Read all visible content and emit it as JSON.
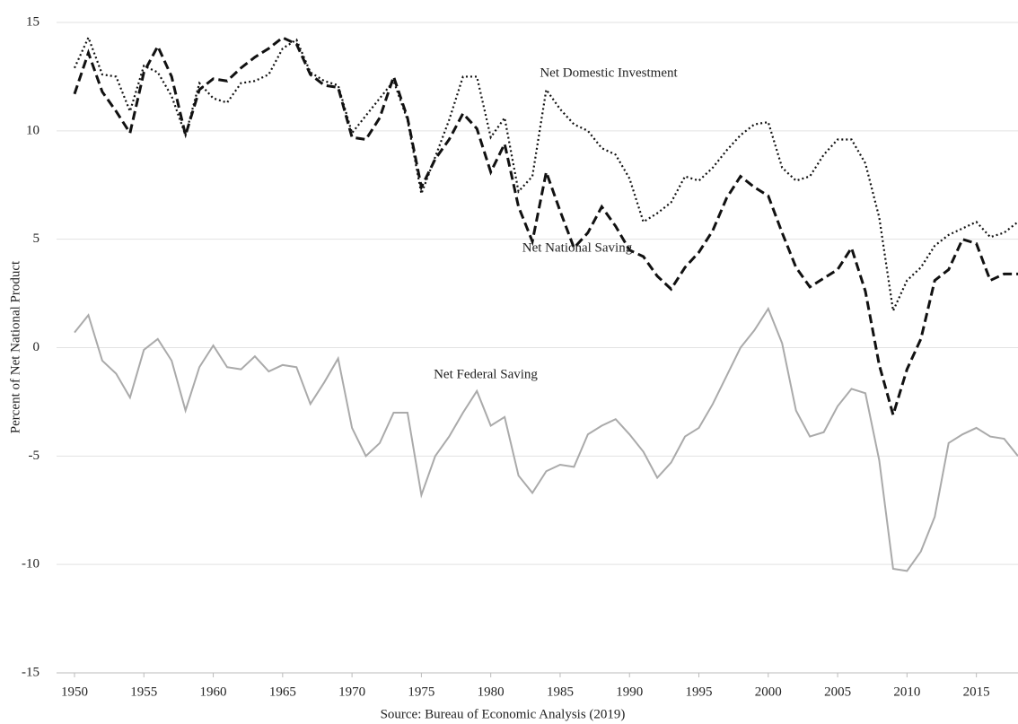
{
  "chart_data": {
    "type": "line",
    "y_label": "Percent of Net National Product",
    "x_label": "Source: Bureau of Economic Analysis (2019)",
    "annotations": [
      "Net Domestic Investment",
      "Net National Saving",
      "Net Federal Saving"
    ],
    "x": [
      1950,
      1951,
      1952,
      1953,
      1954,
      1955,
      1956,
      1957,
      1958,
      1959,
      1960,
      1961,
      1962,
      1963,
      1964,
      1965,
      1966,
      1967,
      1968,
      1969,
      1970,
      1971,
      1972,
      1973,
      1974,
      1975,
      1976,
      1977,
      1978,
      1979,
      1980,
      1981,
      1982,
      1983,
      1984,
      1985,
      1986,
      1987,
      1988,
      1989,
      1990,
      1991,
      1992,
      1993,
      1994,
      1995,
      1996,
      1997,
      1998,
      1999,
      2000,
      2001,
      2002,
      2003,
      2004,
      2005,
      2006,
      2007,
      2008,
      2009,
      2010,
      2011,
      2012,
      2013,
      2014,
      2015,
      2016,
      2017,
      2018
    ],
    "series": [
      {
        "name": "Net Domestic Investment",
        "color": "#111111",
        "style": "dotted",
        "values": [
          12.9,
          14.3,
          12.6,
          12.5,
          10.9,
          13.0,
          12.7,
          11.6,
          9.8,
          12.2,
          11.5,
          11.3,
          12.2,
          12.3,
          12.6,
          13.8,
          14.2,
          12.7,
          12.3,
          12.1,
          9.9,
          10.7,
          11.5,
          12.3,
          10.5,
          7.1,
          8.8,
          10.5,
          12.5,
          12.5,
          9.7,
          10.6,
          7.2,
          7.9,
          11.9,
          11.0,
          10.3,
          10.0,
          9.2,
          8.9,
          7.8,
          5.8,
          6.2,
          6.7,
          7.9,
          7.7,
          8.3,
          9.1,
          9.8,
          10.3,
          10.4,
          8.3,
          7.7,
          7.9,
          8.9,
          9.6,
          9.6,
          8.5,
          6.0,
          1.7,
          3.1,
          3.7,
          4.7,
          5.2,
          5.5,
          5.8,
          5.1,
          5.3,
          5.8
        ]
      },
      {
        "name": "Net National Saving",
        "color": "#111111",
        "style": "dashed",
        "values": [
          11.7,
          13.6,
          11.8,
          10.9,
          9.9,
          12.7,
          13.9,
          12.5,
          9.8,
          11.9,
          12.4,
          12.3,
          12.9,
          13.4,
          13.8,
          14.3,
          14.0,
          12.6,
          12.1,
          12.0,
          9.7,
          9.6,
          10.6,
          12.5,
          10.6,
          7.4,
          8.7,
          9.6,
          10.8,
          10.1,
          8.1,
          9.4,
          6.5,
          4.9,
          8.1,
          6.3,
          4.6,
          5.3,
          6.5,
          5.6,
          4.5,
          4.2,
          3.3,
          2.7,
          3.7,
          4.4,
          5.4,
          6.9,
          7.9,
          7.4,
          7.0,
          5.3,
          3.7,
          2.8,
          3.2,
          3.6,
          4.6,
          2.6,
          -0.8,
          -3.1,
          -1.0,
          0.4,
          3.1,
          3.6,
          5.0,
          4.8,
          3.1,
          3.4,
          3.4
        ]
      },
      {
        "name": "Net Federal Saving",
        "color": "#aaaaaa",
        "style": "solid",
        "values": [
          0.7,
          1.5,
          -0.6,
          -1.2,
          -2.3,
          -0.1,
          0.4,
          -0.6,
          -2.9,
          -0.9,
          0.1,
          -0.9,
          -1.0,
          -0.4,
          -1.1,
          -0.8,
          -0.9,
          -2.6,
          -1.6,
          -0.5,
          -3.7,
          -5.0,
          -4.4,
          -3.0,
          -3.0,
          -6.8,
          -5.0,
          -4.1,
          -3.0,
          -2.0,
          -3.6,
          -3.2,
          -5.9,
          -6.7,
          -5.7,
          -5.4,
          -5.5,
          -4.0,
          -3.6,
          -3.3,
          -4.0,
          -4.8,
          -6.0,
          -5.3,
          -4.1,
          -3.7,
          -2.6,
          -1.3,
          0.0,
          0.8,
          1.8,
          0.2,
          -2.9,
          -4.1,
          -3.9,
          -2.7,
          -1.9,
          -2.1,
          -5.2,
          -10.2,
          -10.3,
          -9.4,
          -7.8,
          -4.4,
          -4.0,
          -3.7,
          -4.1,
          -4.2,
          -5.0
        ]
      }
    ],
    "xlim": [
      1950,
      2018
    ],
    "xticks": [
      1950,
      1955,
      1960,
      1965,
      1970,
      1975,
      1980,
      1985,
      1990,
      1995,
      2000,
      2005,
      2010,
      2015
    ],
    "ylim": [
      -15,
      15
    ],
    "yticks": [
      -15,
      -10,
      -5,
      0,
      5,
      10,
      15
    ],
    "grid": true
  }
}
